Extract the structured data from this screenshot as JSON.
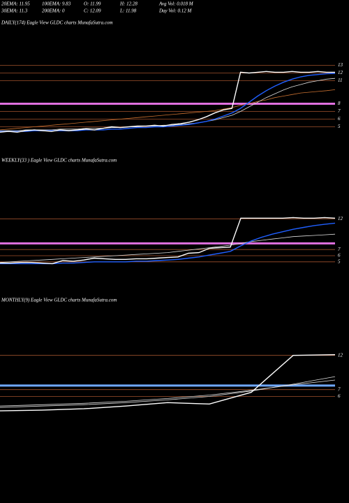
{
  "header": {
    "stats": [
      [
        "20EMA: 11.95",
        "100EMA: 9.83",
        "O: 11.99",
        "H: 12.28",
        "Avg Vol: 0.018 M"
      ],
      [
        "30EMA: 11.3",
        "200EMA: 0",
        "C: 12.09",
        "L: 11.98",
        "Day Vol: 0.12  M"
      ]
    ]
  },
  "chart_data": [
    {
      "type": "line",
      "title": "DAILY(174) Eagle   View   GLDC charts MunafaSutra.com",
      "ylim": [
        3.5,
        13.5
      ],
      "yticks": [
        13,
        12,
        11,
        8,
        7,
        6,
        5
      ],
      "hlines": [
        {
          "value": 8,
          "color": "#e070e0"
        }
      ],
      "series": [
        {
          "color": "#c87030",
          "values": [
            4.6,
            4.7,
            4.8,
            4.9,
            5.0,
            5.1,
            5.2,
            5.3,
            5.4,
            5.5,
            5.6,
            5.7,
            5.8,
            5.9,
            6.0,
            6.1,
            6.2,
            6.3,
            6.4,
            6.5,
            6.6,
            6.7,
            6.8,
            6.9,
            7.0,
            7.1,
            7.3,
            7.5,
            7.8,
            8.0,
            8.3,
            8.5,
            8.8,
            9.0,
            9.2,
            9.4,
            9.5,
            9.6,
            9.7,
            9.83
          ]
        },
        {
          "color": "#dddddd",
          "values": [
            4.5,
            4.5,
            4.5,
            4.6,
            4.6,
            4.6,
            4.6,
            4.7,
            4.7,
            4.7,
            4.8,
            4.8,
            4.8,
            4.9,
            4.9,
            5.0,
            5.0,
            5.1,
            5.1,
            5.2,
            5.2,
            5.3,
            5.4,
            5.5,
            5.7,
            5.9,
            6.2,
            6.5,
            7.0,
            7.6,
            8.2,
            8.8,
            9.3,
            9.8,
            10.2,
            10.5,
            10.8,
            11.0,
            11.2,
            11.3
          ]
        },
        {
          "color": "#1f5fff",
          "values": [
            4.4,
            4.4,
            4.4,
            4.4,
            4.5,
            4.5,
            4.5,
            4.5,
            4.5,
            4.5,
            4.6,
            4.6,
            4.6,
            4.7,
            4.7,
            4.8,
            4.9,
            4.9,
            5.0,
            5.0,
            5.1,
            5.2,
            5.3,
            5.5,
            5.7,
            6.0,
            6.4,
            6.8,
            7.4,
            8.2,
            9.0,
            9.7,
            10.3,
            10.8,
            11.2,
            11.5,
            11.7,
            11.8,
            11.9,
            11.95
          ]
        },
        {
          "color": "#ffffff",
          "values": [
            4.3,
            4.4,
            4.3,
            4.5,
            4.6,
            4.5,
            4.4,
            4.6,
            4.5,
            4.6,
            4.7,
            4.6,
            4.8,
            5.0,
            4.9,
            5.0,
            5.1,
            5.1,
            5.2,
            5.1,
            5.3,
            5.4,
            5.6,
            5.9,
            6.3,
            6.8,
            7.2,
            7.4,
            12.1,
            12.0,
            12.1,
            12.2,
            12.1,
            12.1,
            12.2,
            12.1,
            12.1,
            12.2,
            12.1,
            12.09
          ]
        }
      ]
    },
    {
      "type": "line",
      "title": "WEEKLY(33                    ) Eagle   View   GLDC charts MunafaSutra.com",
      "ylim": [
        3.5,
        13.5
      ],
      "yticks": [
        12,
        7,
        6,
        5
      ],
      "hlines": [
        {
          "value": 8,
          "color": "#e070e0"
        }
      ],
      "series": [
        {
          "color": "#dddddd",
          "values": [
            4.9,
            5.0,
            5.1,
            5.2,
            5.3,
            5.4,
            5.5,
            5.6,
            5.7,
            5.8,
            5.9,
            6.0,
            6.1,
            6.2,
            6.3,
            6.4,
            6.5,
            6.7,
            6.9,
            7.1,
            7.3,
            7.5,
            7.7,
            8.0,
            8.3,
            8.5,
            8.7,
            8.9,
            9.1,
            9.2,
            9.3,
            9.4,
            9.5
          ]
        },
        {
          "color": "#1f5fff",
          "values": [
            4.7,
            4.7,
            4.7,
            4.7,
            4.7,
            4.7,
            4.8,
            4.8,
            4.9,
            5.0,
            5.0,
            5.0,
            5.0,
            5.1,
            5.1,
            5.2,
            5.3,
            5.4,
            5.6,
            5.8,
            6.1,
            6.4,
            6.7,
            7.6,
            8.4,
            9.0,
            9.5,
            9.9,
            10.3,
            10.6,
            10.9,
            11.1,
            11.3
          ]
        },
        {
          "color": "#ffffff",
          "values": [
            4.8,
            4.8,
            4.9,
            4.9,
            4.8,
            4.7,
            5.2,
            5.1,
            5.3,
            5.6,
            5.5,
            5.4,
            5.4,
            5.5,
            5.5,
            5.6,
            5.7,
            5.8,
            6.4,
            6.5,
            7.2,
            7.3,
            7.4,
            12.1,
            12.1,
            12.1,
            12.1,
            12.1,
            12.2,
            12.1,
            12.1,
            12.2,
            12.1
          ]
        }
      ]
    },
    {
      "type": "line",
      "title": "MONTHLY(9) Eagle   View   GLDC charts MunafaSutra.com",
      "ylim": [
        3.5,
        13.5
      ],
      "yticks": [
        12,
        7,
        6
      ],
      "hlines": [
        {
          "value": 7.6,
          "color": "#6fa8ff"
        }
      ],
      "series": [
        {
          "color": "#dddddd",
          "values": [
            4.6,
            4.8,
            5.0,
            5.3,
            5.7,
            6.2,
            6.9,
            7.7,
            8.4
          ]
        },
        {
          "color": "#dddddd",
          "values": [
            4.4,
            4.6,
            4.8,
            5.1,
            5.5,
            6.0,
            6.8,
            7.8,
            8.9
          ]
        },
        {
          "color": "#ffffff",
          "values": [
            3.9,
            4.0,
            4.2,
            4.6,
            5.1,
            4.9,
            6.6,
            12.0,
            12.1
          ]
        }
      ]
    }
  ]
}
